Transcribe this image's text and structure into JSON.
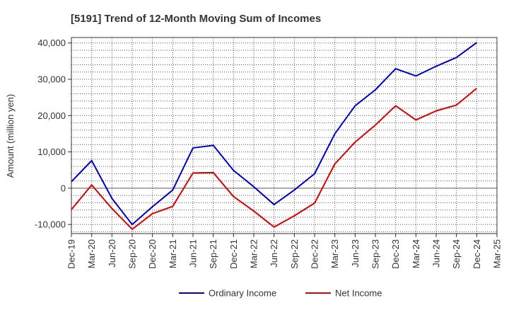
{
  "chart_data": {
    "type": "line",
    "title": "[5191]  Trend of 12-Month Moving Sum of Incomes",
    "xlabel": "",
    "ylabel": "Amount (million yen)",
    "ylim": [
      -12500,
      41500
    ],
    "y_ticks": [
      -10000,
      0,
      10000,
      20000,
      30000,
      40000
    ],
    "y_tick_labels": [
      "-10,000",
      "0",
      "10,000",
      "20,000",
      "30,000",
      "40,000"
    ],
    "categories": [
      "Dec-19",
      "Mar-20",
      "Jun-20",
      "Sep-20",
      "Dec-20",
      "Mar-21",
      "Jun-21",
      "Sep-21",
      "Dec-21",
      "Mar-22",
      "Jun-22",
      "Sep-22",
      "Dec-22",
      "Mar-23",
      "Jun-23",
      "Sep-23",
      "Dec-23",
      "Mar-24",
      "Jun-24",
      "Sep-24",
      "Dec-24",
      "Mar-25"
    ],
    "grid": true,
    "legend_position": "bottom-center",
    "series": [
      {
        "name": "Ordinary Income",
        "color": "#0000cc",
        "values": [
          1800,
          7600,
          -2800,
          -10000,
          -5100,
          -500,
          11100,
          11800,
          4900,
          400,
          -4500,
          -500,
          4000,
          15000,
          22700,
          27100,
          32900,
          30900,
          33600,
          36000,
          40100,
          null
        ]
      },
      {
        "name": "Net Income",
        "color": "#dd0000",
        "values": [
          -5900,
          900,
          -5600,
          -11300,
          -7000,
          -5000,
          4200,
          4300,
          -2300,
          -6300,
          -10700,
          -7600,
          -4100,
          6700,
          12700,
          17400,
          22700,
          18800,
          21300,
          22900,
          27500,
          null
        ]
      }
    ]
  }
}
